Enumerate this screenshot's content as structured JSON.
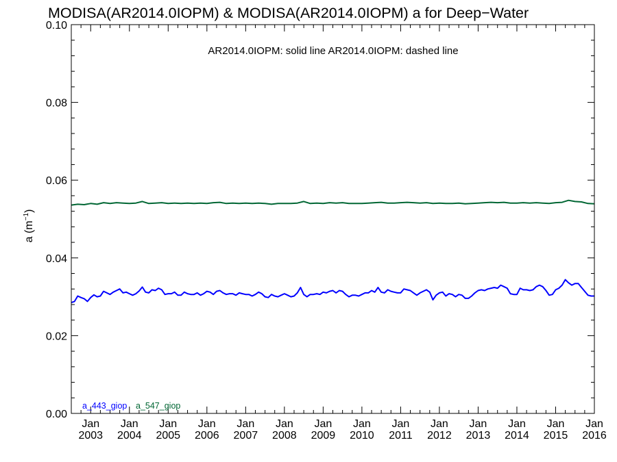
{
  "chart_data": {
    "type": "line",
    "title": "MODISA(AR2014.0IOPM) & MODISA(AR2014.0IOPM)  a for Deep−Water",
    "annotation": "AR2014.0IOPM: solid line   AR2014.0IOPM: dashed line",
    "ylabel_main": "a (m",
    "ylabel_sup": "−1",
    "ylabel_close": ")",
    "ylim": [
      0.0,
      0.1
    ],
    "yticks": [
      {
        "value": 0.0,
        "label": "0.00"
      },
      {
        "value": 0.02,
        "label": "0.02"
      },
      {
        "value": 0.04,
        "label": "0.04"
      },
      {
        "value": 0.06,
        "label": "0.06"
      },
      {
        "value": 0.08,
        "label": "0.08"
      },
      {
        "value": 0.1,
        "label": "0.10"
      }
    ],
    "xlim": [
      "2002-07",
      "2016-01"
    ],
    "xticks": [
      {
        "month": "Jan",
        "year": "2003",
        "date": "2003-01"
      },
      {
        "month": "Jan",
        "year": "2004",
        "date": "2004-01"
      },
      {
        "month": "Jan",
        "year": "2005",
        "date": "2005-01"
      },
      {
        "month": "Jan",
        "year": "2006",
        "date": "2006-01"
      },
      {
        "month": "Jan",
        "year": "2007",
        "date": "2007-01"
      },
      {
        "month": "Jan",
        "year": "2008",
        "date": "2008-01"
      },
      {
        "month": "Jan",
        "year": "2009",
        "date": "2009-01"
      },
      {
        "month": "Jan",
        "year": "2010",
        "date": "2010-01"
      },
      {
        "month": "Jan",
        "year": "2011",
        "date": "2011-01"
      },
      {
        "month": "Jan",
        "year": "2012",
        "date": "2012-01"
      },
      {
        "month": "Jan",
        "year": "2013",
        "date": "2013-01"
      },
      {
        "month": "Jan",
        "year": "2014",
        "date": "2014-01"
      },
      {
        "month": "Jan",
        "year": "2015",
        "date": "2015-01"
      },
      {
        "month": "Jan",
        "year": "2016",
        "date": "2016-01"
      }
    ],
    "grid": false,
    "legend_placement": "bottom-left",
    "series": [
      {
        "name": "a_443_giop",
        "color": "#0000ff",
        "style": "solid",
        "points": [
          [
            "2002-07",
            0.0285
          ],
          [
            "2002-08",
            0.0288
          ],
          [
            "2002-09",
            0.0302
          ],
          [
            "2002-10",
            0.0298
          ],
          [
            "2002-11",
            0.0295
          ],
          [
            "2002-12",
            0.0288
          ],
          [
            "2003-01",
            0.0298
          ],
          [
            "2003-02",
            0.0305
          ],
          [
            "2003-03",
            0.03
          ],
          [
            "2003-04",
            0.0302
          ],
          [
            "2003-05",
            0.0314
          ],
          [
            "2003-06",
            0.031
          ],
          [
            "2003-07",
            0.0306
          ],
          [
            "2003-08",
            0.0312
          ],
          [
            "2003-09",
            0.0316
          ],
          [
            "2003-10",
            0.032
          ],
          [
            "2003-11",
            0.031
          ],
          [
            "2003-12",
            0.0312
          ],
          [
            "2004-01",
            0.0308
          ],
          [
            "2004-02",
            0.0304
          ],
          [
            "2004-03",
            0.0308
          ],
          [
            "2004-04",
            0.0315
          ],
          [
            "2004-05",
            0.0325
          ],
          [
            "2004-06",
            0.0312
          ],
          [
            "2004-07",
            0.031
          ],
          [
            "2004-08",
            0.0318
          ],
          [
            "2004-09",
            0.0316
          ],
          [
            "2004-10",
            0.0322
          ],
          [
            "2004-11",
            0.0318
          ],
          [
            "2004-12",
            0.0306
          ],
          [
            "2005-01",
            0.0308
          ],
          [
            "2005-02",
            0.0308
          ],
          [
            "2005-03",
            0.0312
          ],
          [
            "2005-04",
            0.0304
          ],
          [
            "2005-05",
            0.0304
          ],
          [
            "2005-06",
            0.0312
          ],
          [
            "2005-07",
            0.0308
          ],
          [
            "2005-08",
            0.0306
          ],
          [
            "2005-09",
            0.0306
          ],
          [
            "2005-10",
            0.031
          ],
          [
            "2005-11",
            0.0304
          ],
          [
            "2005-12",
            0.0308
          ],
          [
            "2006-01",
            0.0314
          ],
          [
            "2006-02",
            0.0312
          ],
          [
            "2006-03",
            0.0306
          ],
          [
            "2006-04",
            0.0314
          ],
          [
            "2006-05",
            0.0316
          ],
          [
            "2006-06",
            0.031
          ],
          [
            "2006-07",
            0.0306
          ],
          [
            "2006-08",
            0.0308
          ],
          [
            "2006-09",
            0.0308
          ],
          [
            "2006-10",
            0.0304
          ],
          [
            "2006-11",
            0.031
          ],
          [
            "2006-12",
            0.0308
          ],
          [
            "2007-01",
            0.0306
          ],
          [
            "2007-02",
            0.0306
          ],
          [
            "2007-03",
            0.0302
          ],
          [
            "2007-04",
            0.0306
          ],
          [
            "2007-05",
            0.0312
          ],
          [
            "2007-06",
            0.0308
          ],
          [
            "2007-07",
            0.03
          ],
          [
            "2007-08",
            0.0298
          ],
          [
            "2007-09",
            0.0306
          ],
          [
            "2007-10",
            0.0302
          ],
          [
            "2007-11",
            0.03
          ],
          [
            "2007-12",
            0.0304
          ],
          [
            "2008-01",
            0.0308
          ],
          [
            "2008-02",
            0.0304
          ],
          [
            "2008-03",
            0.03
          ],
          [
            "2008-04",
            0.0302
          ],
          [
            "2008-05",
            0.031
          ],
          [
            "2008-06",
            0.0324
          ],
          [
            "2008-07",
            0.0306
          ],
          [
            "2008-08",
            0.03
          ],
          [
            "2008-09",
            0.0306
          ],
          [
            "2008-10",
            0.0306
          ],
          [
            "2008-11",
            0.0308
          ],
          [
            "2008-12",
            0.0306
          ],
          [
            "2009-01",
            0.0312
          ],
          [
            "2009-02",
            0.031
          ],
          [
            "2009-03",
            0.0314
          ],
          [
            "2009-04",
            0.0316
          ],
          [
            "2009-05",
            0.031
          ],
          [
            "2009-06",
            0.0316
          ],
          [
            "2009-07",
            0.0314
          ],
          [
            "2009-08",
            0.0306
          ],
          [
            "2009-09",
            0.03
          ],
          [
            "2009-10",
            0.0304
          ],
          [
            "2009-11",
            0.0304
          ],
          [
            "2009-12",
            0.0302
          ],
          [
            "2010-01",
            0.0306
          ],
          [
            "2010-02",
            0.031
          ],
          [
            "2010-03",
            0.031
          ],
          [
            "2010-04",
            0.0316
          ],
          [
            "2010-05",
            0.0312
          ],
          [
            "2010-06",
            0.0324
          ],
          [
            "2010-07",
            0.0312
          ],
          [
            "2010-08",
            0.031
          ],
          [
            "2010-09",
            0.0318
          ],
          [
            "2010-10",
            0.0314
          ],
          [
            "2010-11",
            0.0312
          ],
          [
            "2010-12",
            0.031
          ],
          [
            "2011-01",
            0.031
          ],
          [
            "2011-02",
            0.032
          ],
          [
            "2011-03",
            0.0318
          ],
          [
            "2011-04",
            0.0316
          ],
          [
            "2011-05",
            0.031
          ],
          [
            "2011-06",
            0.0304
          ],
          [
            "2011-07",
            0.031
          ],
          [
            "2011-08",
            0.0314
          ],
          [
            "2011-09",
            0.0318
          ],
          [
            "2011-10",
            0.0312
          ],
          [
            "2011-11",
            0.0292
          ],
          [
            "2011-12",
            0.0304
          ],
          [
            "2012-01",
            0.031
          ],
          [
            "2012-02",
            0.0312
          ],
          [
            "2012-03",
            0.0302
          ],
          [
            "2012-04",
            0.0308
          ],
          [
            "2012-05",
            0.0306
          ],
          [
            "2012-06",
            0.03
          ],
          [
            "2012-07",
            0.0306
          ],
          [
            "2012-08",
            0.0304
          ],
          [
            "2012-09",
            0.0296
          ],
          [
            "2012-10",
            0.0296
          ],
          [
            "2012-11",
            0.0302
          ],
          [
            "2012-12",
            0.031
          ],
          [
            "2013-01",
            0.0316
          ],
          [
            "2013-02",
            0.0318
          ],
          [
            "2013-03",
            0.0316
          ],
          [
            "2013-04",
            0.032
          ],
          [
            "2013-05",
            0.0322
          ],
          [
            "2013-06",
            0.0324
          ],
          [
            "2013-07",
            0.0322
          ],
          [
            "2013-08",
            0.033
          ],
          [
            "2013-09",
            0.0326
          ],
          [
            "2013-10",
            0.0322
          ],
          [
            "2013-11",
            0.0308
          ],
          [
            "2013-12",
            0.0306
          ],
          [
            "2014-01",
            0.0306
          ],
          [
            "2014-02",
            0.0322
          ],
          [
            "2014-03",
            0.0318
          ],
          [
            "2014-04",
            0.0318
          ],
          [
            "2014-05",
            0.0316
          ],
          [
            "2014-06",
            0.0318
          ],
          [
            "2014-07",
            0.0326
          ],
          [
            "2014-08",
            0.033
          ],
          [
            "2014-09",
            0.0326
          ],
          [
            "2014-10",
            0.0316
          ],
          [
            "2014-11",
            0.0304
          ],
          [
            "2014-12",
            0.0306
          ],
          [
            "2015-01",
            0.0318
          ],
          [
            "2015-02",
            0.0322
          ],
          [
            "2015-03",
            0.033
          ],
          [
            "2015-04",
            0.0344
          ],
          [
            "2015-05",
            0.0336
          ],
          [
            "2015-06",
            0.033
          ],
          [
            "2015-07",
            0.0334
          ],
          [
            "2015-08",
            0.0334
          ],
          [
            "2015-09",
            0.0324
          ],
          [
            "2015-10",
            0.0314
          ],
          [
            "2015-11",
            0.0304
          ],
          [
            "2015-12",
            0.0302
          ],
          [
            "2016-01",
            0.0302
          ]
        ]
      },
      {
        "name": "a_547_giop",
        "color": "#006633",
        "style": "solid",
        "points": [
          [
            "2002-07",
            0.0536
          ],
          [
            "2002-09",
            0.0538
          ],
          [
            "2002-11",
            0.0537
          ],
          [
            "2003-01",
            0.054
          ],
          [
            "2003-03",
            0.0538
          ],
          [
            "2003-05",
            0.0542
          ],
          [
            "2003-07",
            0.054
          ],
          [
            "2003-09",
            0.0542
          ],
          [
            "2003-11",
            0.0541
          ],
          [
            "2004-01",
            0.054
          ],
          [
            "2004-03",
            0.0541
          ],
          [
            "2004-05",
            0.0545
          ],
          [
            "2004-07",
            0.054
          ],
          [
            "2004-09",
            0.0541
          ],
          [
            "2004-11",
            0.0542
          ],
          [
            "2005-01",
            0.054
          ],
          [
            "2005-03",
            0.0541
          ],
          [
            "2005-05",
            0.054
          ],
          [
            "2005-07",
            0.0541
          ],
          [
            "2005-09",
            0.054
          ],
          [
            "2005-11",
            0.0541
          ],
          [
            "2006-01",
            0.054
          ],
          [
            "2006-03",
            0.0542
          ],
          [
            "2006-05",
            0.0543
          ],
          [
            "2006-07",
            0.054
          ],
          [
            "2006-09",
            0.0541
          ],
          [
            "2006-11",
            0.054
          ],
          [
            "2007-01",
            0.0541
          ],
          [
            "2007-03",
            0.054
          ],
          [
            "2007-05",
            0.0541
          ],
          [
            "2007-07",
            0.054
          ],
          [
            "2007-09",
            0.0538
          ],
          [
            "2007-11",
            0.054
          ],
          [
            "2008-01",
            0.054
          ],
          [
            "2008-03",
            0.054
          ],
          [
            "2008-05",
            0.0541
          ],
          [
            "2008-07",
            0.0545
          ],
          [
            "2008-09",
            0.054
          ],
          [
            "2008-11",
            0.0541
          ],
          [
            "2009-01",
            0.054
          ],
          [
            "2009-03",
            0.0542
          ],
          [
            "2009-05",
            0.0541
          ],
          [
            "2009-07",
            0.0542
          ],
          [
            "2009-09",
            0.054
          ],
          [
            "2009-11",
            0.054
          ],
          [
            "2010-01",
            0.054
          ],
          [
            "2010-03",
            0.0541
          ],
          [
            "2010-05",
            0.0542
          ],
          [
            "2010-07",
            0.0543
          ],
          [
            "2010-09",
            0.0541
          ],
          [
            "2010-11",
            0.0541
          ],
          [
            "2011-01",
            0.0542
          ],
          [
            "2011-03",
            0.0543
          ],
          [
            "2011-05",
            0.0542
          ],
          [
            "2011-07",
            0.0541
          ],
          [
            "2011-09",
            0.0542
          ],
          [
            "2011-11",
            0.054
          ],
          [
            "2012-01",
            0.0541
          ],
          [
            "2012-03",
            0.054
          ],
          [
            "2012-05",
            0.054
          ],
          [
            "2012-07",
            0.0541
          ],
          [
            "2012-09",
            0.0539
          ],
          [
            "2012-11",
            0.054
          ],
          [
            "2013-01",
            0.0541
          ],
          [
            "2013-03",
            0.0542
          ],
          [
            "2013-05",
            0.0543
          ],
          [
            "2013-07",
            0.0542
          ],
          [
            "2013-09",
            0.0543
          ],
          [
            "2013-11",
            0.0541
          ],
          [
            "2014-01",
            0.0541
          ],
          [
            "2014-03",
            0.0542
          ],
          [
            "2014-05",
            0.0541
          ],
          [
            "2014-07",
            0.0542
          ],
          [
            "2014-09",
            0.0541
          ],
          [
            "2014-11",
            0.054
          ],
          [
            "2015-01",
            0.0542
          ],
          [
            "2015-03",
            0.0543
          ],
          [
            "2015-05",
            0.0548
          ],
          [
            "2015-07",
            0.0545
          ],
          [
            "2015-09",
            0.0544
          ],
          [
            "2015-11",
            0.054
          ],
          [
            "2016-01",
            0.0539
          ]
        ]
      }
    ]
  }
}
